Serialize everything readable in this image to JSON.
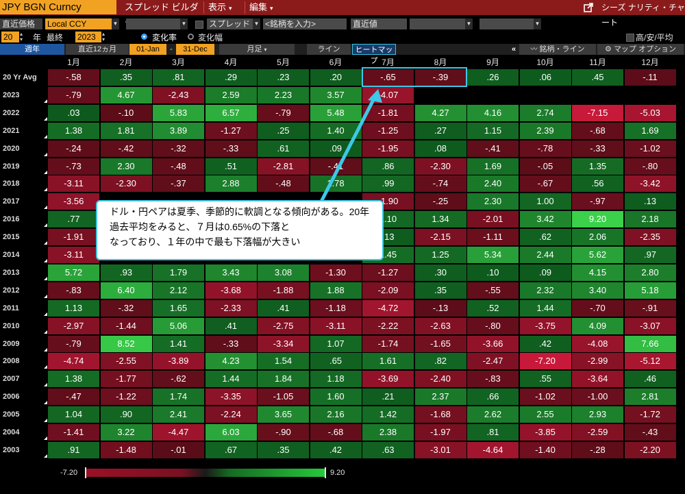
{
  "topbar": {
    "ticker": "JPY BGN Curncy",
    "menus": [
      {
        "label": "スプレッド ビルダー",
        "arrow": "▾"
      },
      {
        "label": "表示",
        "arrow": "▾"
      },
      {
        "label": "編集",
        "arrow": "▾"
      }
    ],
    "right_label": "シーズ ナリティ・チャート"
  },
  "params": {
    "price_label": "直近価格",
    "currency": "Local CCY",
    "spread_label": "スプレッド",
    "ticker_placeholder": "<銘柄を入力>",
    "latest_value": "直近値",
    "years": "20",
    "year_label": "年",
    "last_label": "最終",
    "last_year": "2023",
    "change_rate": "変化率",
    "change_width": "変化幅",
    "high_low_avg": "高/安/平均"
  },
  "toolbar": {
    "avg": "週年",
    "recent12": "直近12ヵ月",
    "from": "01-Jan",
    "dash": "-",
    "to": "31-Dec",
    "period": "月足",
    "line": "ライン",
    "heatmap": "ヒートマップ",
    "collapse": "«",
    "ticker_line": "銘柄・ライン",
    "map_option": "マップ オプション"
  },
  "grid": {
    "months": [
      "1月",
      "2月",
      "3月",
      "4月",
      "5月",
      "6月",
      "7月",
      "8月",
      "9月",
      "10月",
      "11月",
      "12月"
    ],
    "rows": [
      {
        "label": "20 Yr Avg",
        "values": [
          -0.58,
          0.35,
          0.81,
          0.29,
          0.23,
          0.2,
          -0.65,
          -0.39,
          0.26,
          0.06,
          0.45,
          -0.11
        ]
      },
      {
        "label": "2023",
        "values": [
          -0.79,
          4.67,
          -2.43,
          2.59,
          2.23,
          3.57,
          -4.07,
          null,
          null,
          null,
          null,
          null
        ]
      },
      {
        "label": "2022",
        "values": [
          0.03,
          -0.1,
          5.83,
          6.57,
          -0.79,
          5.48,
          -1.81,
          4.27,
          4.16,
          2.74,
          -7.15,
          -5.03
        ]
      },
      {
        "label": "2021",
        "values": [
          1.38,
          1.81,
          3.89,
          -1.27,
          0.25,
          1.4,
          -1.25,
          0.27,
          1.15,
          2.39,
          -0.68,
          1.69
        ]
      },
      {
        "label": "2020",
        "values": [
          -0.24,
          -0.42,
          -0.32,
          -0.33,
          0.61,
          0.09,
          -1.95,
          0.08,
          -0.41,
          -0.78,
          -0.33,
          -1.02
        ]
      },
      {
        "label": "2019",
        "values": [
          -0.73,
          2.3,
          -0.48,
          0.51,
          -2.81,
          -0.41,
          0.86,
          -2.3,
          1.69,
          -0.05,
          1.35,
          -0.8
        ]
      },
      {
        "label": "2018",
        "values": [
          -3.11,
          -2.3,
          -0.37,
          2.88,
          -0.48,
          1.78,
          0.99,
          -0.74,
          2.4,
          -0.67,
          0.56,
          -3.42
        ]
      },
      {
        "label": "2017",
        "values": [
          -3.56,
          null,
          null,
          null,
          null,
          null,
          -1.9,
          -0.25,
          2.3,
          1.0,
          -0.97,
          0.13
        ]
      },
      {
        "label": "2016",
        "values": [
          0.77,
          null,
          null,
          null,
          null,
          null,
          1.1,
          1.34,
          -2.01,
          3.42,
          9.2,
          2.18
        ]
      },
      {
        "label": "2015",
        "values": [
          -1.91,
          null,
          null,
          null,
          null,
          null,
          0.13,
          -2.15,
          -1.11,
          0.62,
          2.06,
          -2.35
        ]
      },
      {
        "label": "2014",
        "values": [
          -3.11,
          null,
          null,
          null,
          null,
          null,
          1.45,
          1.25,
          5.34,
          2.44,
          5.62,
          0.97
        ]
      },
      {
        "label": "2013",
        "values": [
          5.72,
          0.93,
          1.79,
          3.43,
          3.08,
          -1.3,
          -1.27,
          0.3,
          0.1,
          0.09,
          4.15,
          2.8
        ]
      },
      {
        "label": "2012",
        "values": [
          -0.83,
          6.4,
          2.12,
          -3.68,
          -1.88,
          1.88,
          -2.09,
          0.35,
          -0.55,
          2.32,
          3.4,
          5.18
        ]
      },
      {
        "label": "2011",
        "values": [
          1.13,
          -0.32,
          1.65,
          -2.33,
          0.41,
          -1.18,
          -4.72,
          -0.13,
          0.52,
          1.44,
          -0.7,
          -0.91
        ]
      },
      {
        "label": "2010",
        "values": [
          -2.97,
          -1.44,
          5.06,
          0.41,
          -2.75,
          -3.11,
          -2.22,
          -2.63,
          -0.8,
          -3.75,
          4.09,
          -3.07
        ]
      },
      {
        "label": "2009",
        "values": [
          -0.79,
          8.52,
          1.41,
          -0.33,
          -3.34,
          1.07,
          -1.74,
          -1.65,
          -3.66,
          0.42,
          -4.08,
          7.66
        ]
      },
      {
        "label": "2008",
        "values": [
          -4.74,
          -2.55,
          -3.89,
          4.23,
          1.54,
          0.65,
          1.61,
          0.82,
          -2.47,
          -7.2,
          -2.99,
          -5.12
        ]
      },
      {
        "label": "2007",
        "values": [
          1.38,
          -1.77,
          -0.62,
          1.44,
          1.84,
          1.18,
          -3.69,
          -2.4,
          -0.83,
          0.55,
          -3.64,
          0.46
        ]
      },
      {
        "label": "2006",
        "values": [
          -0.47,
          -1.22,
          1.74,
          -3.35,
          -1.05,
          1.6,
          0.21,
          2.37,
          0.66,
          -1.02,
          -1.0,
          2.81
        ]
      },
      {
        "label": "2005",
        "values": [
          1.04,
          0.9,
          2.41,
          -2.24,
          3.65,
          2.16,
          1.42,
          -1.68,
          2.62,
          2.55,
          2.93,
          -1.72
        ]
      },
      {
        "label": "2004",
        "values": [
          -1.41,
          3.22,
          -4.47,
          6.03,
          -0.9,
          -0.68,
          2.38,
          -1.97,
          0.81,
          -3.85,
          -2.59,
          -0.43
        ]
      },
      {
        "label": "2003",
        "values": [
          0.91,
          -1.48,
          -0.01,
          0.67,
          0.35,
          0.42,
          0.63,
          -3.01,
          -4.64,
          -1.4,
          -0.28,
          -2.2
        ]
      }
    ]
  },
  "annotation": {
    "line1": "ドル・円ペアは夏季、季節的に軟調となる傾向がある。20年過去平均をみると、７月は0.65%の下落と",
    "line2": "なっており、１年の中で最も下落幅が大きい"
  },
  "legend": {
    "min": "-7.20",
    "max": "9.20"
  },
  "colors": {
    "positive_dark": "#0e5a1e",
    "positive_bright": "#3bd14a",
    "negative_dark": "#5a0d18",
    "negative_bright": "#c8193a",
    "highlight": "#3cc8e8",
    "accent": "#f1a222"
  }
}
